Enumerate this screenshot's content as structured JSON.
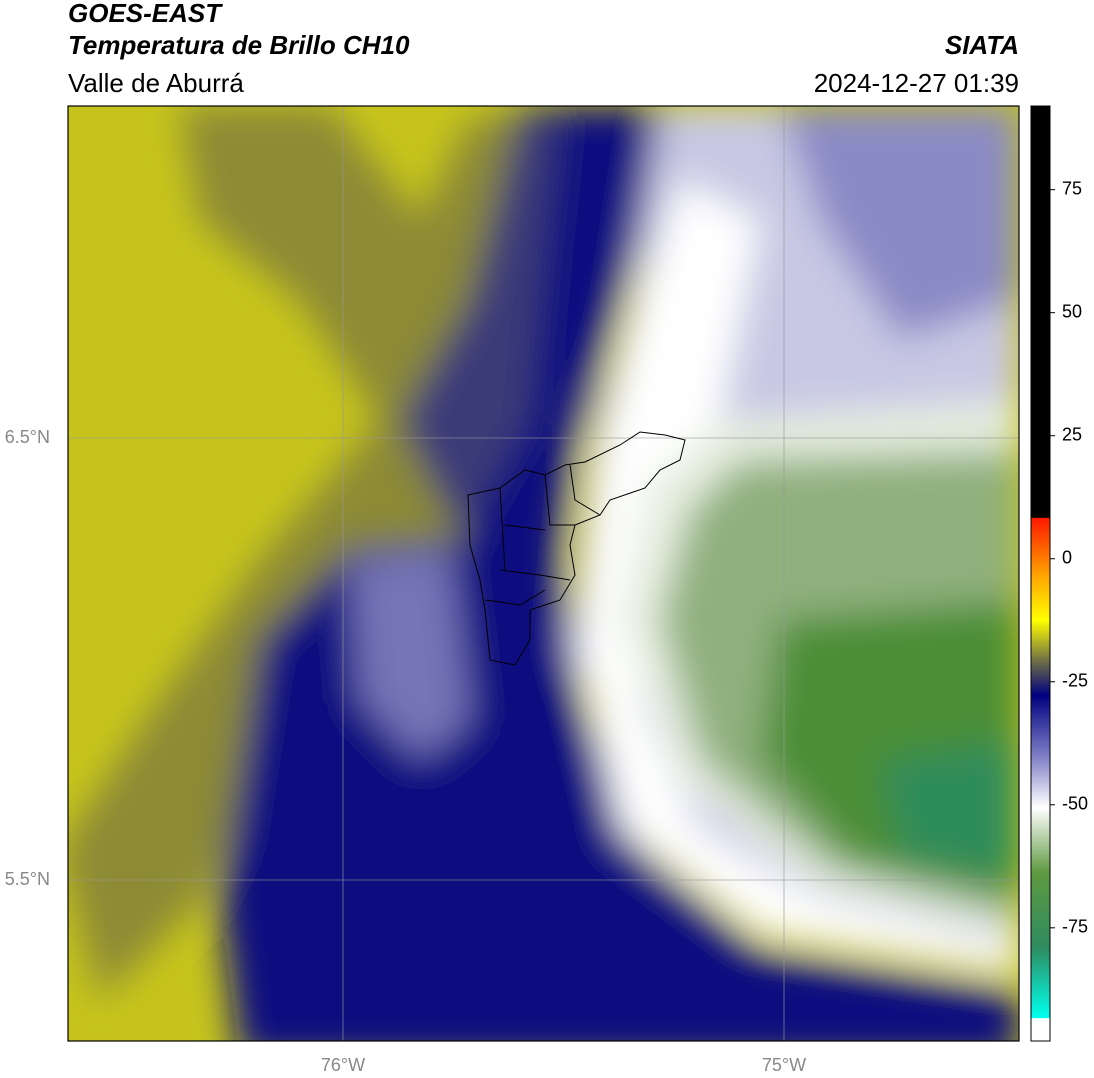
{
  "header": {
    "title": "GOES-EAST",
    "subtitle": "Temperatura de Brillo CH10",
    "region": "Valle de Aburrá",
    "source": "SIATA",
    "datetime": "2024-12-27 01:39"
  },
  "map": {
    "lat_labels": [
      "6.5°N",
      "5.5°N"
    ],
    "lon_labels": [
      "76°W",
      "75°W"
    ]
  },
  "colorbar": {
    "lim": [
      -98,
      92
    ],
    "ticks": [
      75,
      50,
      25,
      0,
      -25,
      -50,
      -75
    ]
  }
}
